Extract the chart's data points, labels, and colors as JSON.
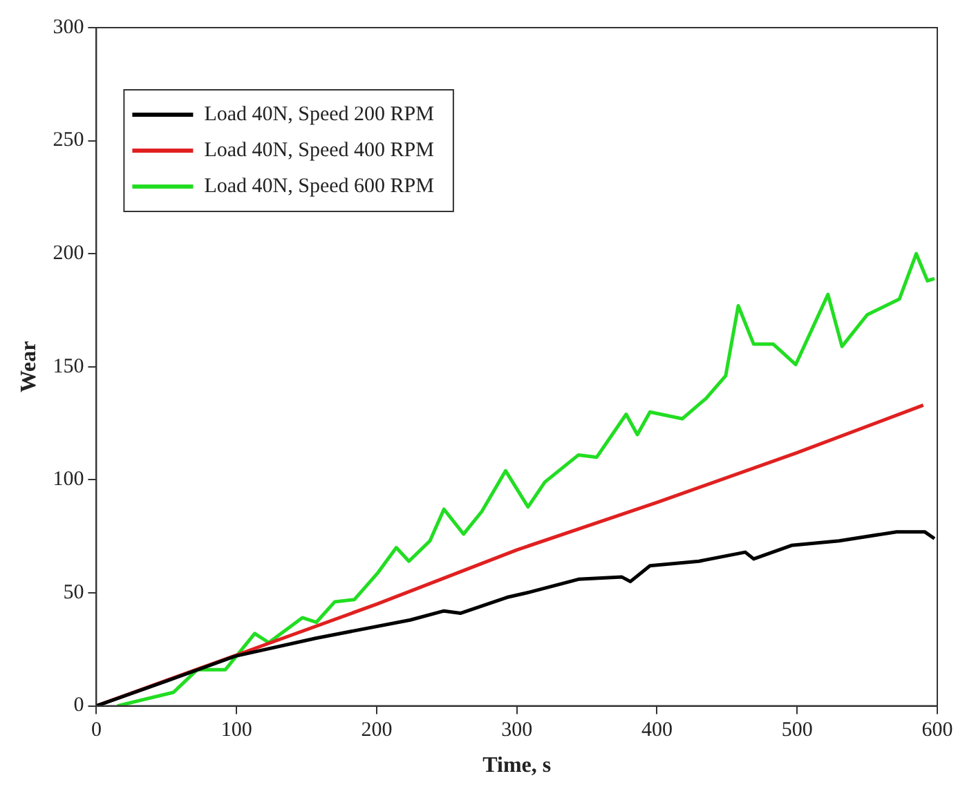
{
  "chart_data": {
    "type": "line",
    "xlabel": "Time, s",
    "ylabel": "Wear",
    "xlim": [
      0,
      600
    ],
    "ylim": [
      0,
      300
    ],
    "xticks": [
      0,
      100,
      200,
      300,
      400,
      500,
      600
    ],
    "yticks": [
      0,
      50,
      100,
      150,
      200,
      250,
      300
    ],
    "grid": false,
    "legend": "top left",
    "marker": "none",
    "line_style": "solid",
    "series": [
      {
        "name": "Load 40N, Speed 200 RPM",
        "color": "#000000",
        "x": [
          0,
          50,
          99,
          157,
          224,
          248,
          260,
          293,
          307,
          344,
          375,
          381,
          395,
          430,
          463,
          469,
          496,
          530,
          571,
          591,
          598
        ],
        "values": [
          0,
          11,
          22,
          30,
          38,
          42,
          41,
          48,
          50,
          56,
          57,
          55,
          62,
          64,
          68,
          65,
          71,
          73,
          77,
          77,
          74
        ]
      },
      {
        "name": "Load 40N, Speed 400 RPM",
        "color": "#e02020",
        "x": [
          0,
          100,
          200,
          300,
          400,
          500,
          590
        ],
        "values": [
          0,
          22.5,
          45,
          69,
          90,
          112,
          133
        ]
      },
      {
        "name": "Load 40N, Speed 600 RPM",
        "color": "#22dd22",
        "x": [
          15,
          55,
          72,
          92,
          113,
          123,
          147,
          157,
          170,
          184,
          201,
          214,
          223,
          238,
          248,
          262,
          275,
          292,
          308,
          320,
          344,
          357,
          378,
          386,
          395,
          418,
          435,
          449,
          458,
          469,
          483,
          499,
          522,
          532,
          550,
          573,
          585,
          593,
          598
        ],
        "values": [
          0,
          6,
          16,
          16,
          32,
          28,
          39,
          37,
          46,
          47,
          59,
          70,
          64,
          73,
          87,
          76,
          86,
          104,
          88,
          99,
          111,
          110,
          129,
          120,
          130,
          127,
          136,
          146,
          177,
          160,
          160,
          151,
          182,
          159,
          173,
          180,
          200,
          188,
          189
        ]
      }
    ]
  }
}
